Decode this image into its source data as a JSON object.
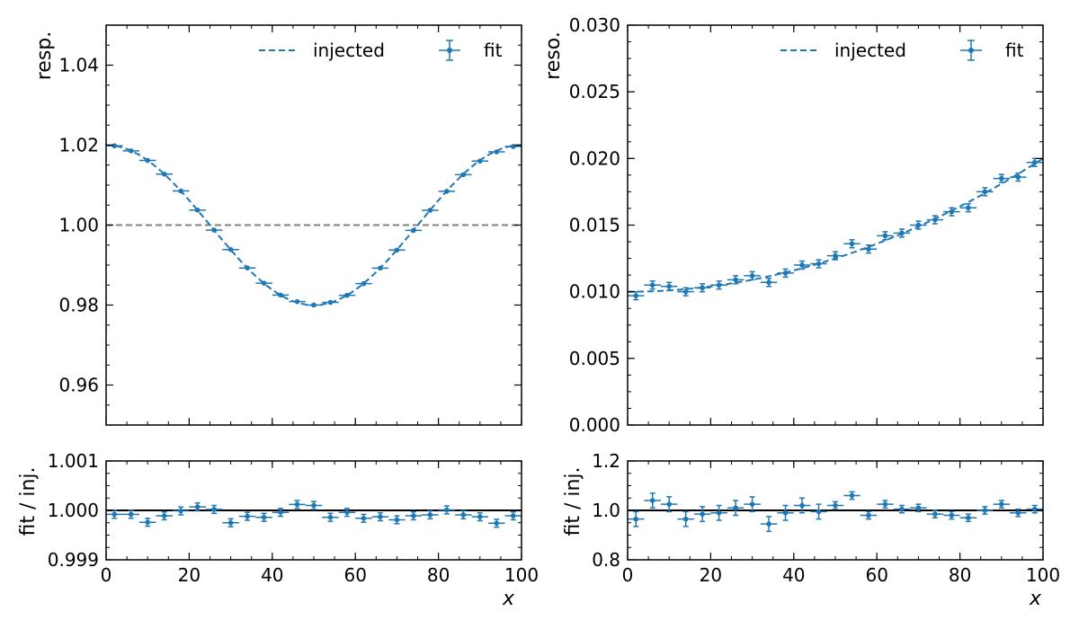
{
  "figure": {
    "x_label": "x",
    "ratio_ylabel": "fit / inj.",
    "legend": {
      "injected": "injected",
      "fit": "fit"
    },
    "colors": {
      "series": "#1f77b4",
      "reference": "#808080",
      "axis": "#000000",
      "unity": "#000000"
    }
  },
  "chart_data": [
    {
      "name": "response",
      "type": "scatter",
      "ylabel": "resp.",
      "xlim": [
        0,
        100
      ],
      "ylim": [
        0.95,
        1.05
      ],
      "x_ticks": [
        0,
        20,
        40,
        60,
        80,
        100
      ],
      "y_ticks": [
        0.96,
        0.98,
        1.0,
        1.02,
        1.04
      ],
      "y_tick_labels": [
        "0.96",
        "0.98",
        "1.00",
        "1.02",
        "1.04"
      ],
      "reference_line": 1.0,
      "legend_position": "top-right",
      "injected_curve": {
        "label": "injected",
        "style": "dashed",
        "function": "1 + 0.02*cos(2*pi*x/100)"
      },
      "fit_points": {
        "label": "fit",
        "x": [
          2,
          6,
          10,
          14,
          18,
          22,
          26,
          30,
          34,
          38,
          42,
          46,
          50,
          54,
          58,
          62,
          66,
          70,
          74,
          78,
          82,
          86,
          90,
          94,
          98
        ],
        "x_err": 2,
        "y": [
          1.01984,
          1.01857,
          1.01617,
          1.01275,
          1.00853,
          1.00375,
          0.99875,
          0.99389,
          0.98928,
          0.98548,
          0.9825,
          0.98086,
          0.98001,
          0.98067,
          0.98244,
          0.98536,
          0.98925,
          0.99376,
          0.99868,
          1.00371,
          1.00845,
          1.01261,
          1.01602,
          1.01831,
          1.01965
        ],
        "y_err": [
          0.0001,
          0.0001,
          0.0001,
          0.0001,
          0.0001,
          0.0001,
          0.0001,
          0.0001,
          0.0001,
          0.0001,
          0.0001,
          0.0001,
          0.0001,
          0.0001,
          0.0001,
          0.0001,
          0.0001,
          0.0001,
          0.0001,
          0.0001,
          0.0001,
          0.0001,
          0.0001,
          0.0001,
          0.0001
        ]
      }
    },
    {
      "name": "resolution",
      "type": "scatter",
      "ylabel": "reso.",
      "xlim": [
        0,
        100
      ],
      "ylim": [
        0.0,
        0.03
      ],
      "x_ticks": [
        0,
        20,
        40,
        60,
        80,
        100
      ],
      "y_ticks": [
        0.0,
        0.005,
        0.01,
        0.015,
        0.02,
        0.025,
        0.03
      ],
      "y_tick_labels": [
        "0.000",
        "0.005",
        "0.010",
        "0.015",
        "0.020",
        "0.025",
        "0.030"
      ],
      "legend_position": "top-right",
      "injected_curve": {
        "label": "injected",
        "style": "dashed",
        "function": "0.01 + 0.01*(x/100)^2"
      },
      "fit_points": {
        "label": "fit",
        "x": [
          2,
          6,
          10,
          14,
          18,
          22,
          26,
          30,
          34,
          38,
          42,
          46,
          50,
          54,
          58,
          62,
          66,
          70,
          74,
          78,
          82,
          86,
          90,
          94,
          98
        ],
        "x_err": 2,
        "y": [
          0.0097,
          0.0105,
          0.0104,
          0.01,
          0.0103,
          0.0105,
          0.0109,
          0.0112,
          0.0107,
          0.0114,
          0.012,
          0.0121,
          0.0127,
          0.0136,
          0.0132,
          0.0142,
          0.0144,
          0.015,
          0.0154,
          0.016,
          0.0163,
          0.0175,
          0.0185,
          0.0186,
          0.0197
        ],
        "y_err": [
          0.0003,
          0.0003,
          0.0003,
          0.0003,
          0.0003,
          0.0003,
          0.0003,
          0.0003,
          0.0003,
          0.0003,
          0.0003,
          0.0003,
          0.0003,
          0.0003,
          0.0003,
          0.0003,
          0.0003,
          0.0003,
          0.0003,
          0.0003,
          0.0003,
          0.0003,
          0.0003,
          0.0003,
          0.0003
        ]
      }
    },
    {
      "name": "response-ratio",
      "type": "scatter",
      "ylabel": "fit / inj.",
      "xlabel": "x",
      "xlim": [
        0,
        100
      ],
      "ylim": [
        0.999,
        1.001
      ],
      "x_ticks": [
        0,
        20,
        40,
        60,
        80,
        100
      ],
      "x_tick_labels": [
        "0",
        "20",
        "40",
        "60",
        "80",
        "100"
      ],
      "y_ticks": [
        0.999,
        1.0,
        1.001
      ],
      "y_tick_labels": [
        "0.999",
        "1.000",
        "1.001"
      ],
      "unity_line": 1.0,
      "points": {
        "x": [
          2,
          6,
          10,
          14,
          18,
          22,
          26,
          30,
          34,
          38,
          42,
          46,
          50,
          54,
          58,
          62,
          66,
          70,
          74,
          78,
          82,
          86,
          90,
          94,
          98
        ],
        "x_err": 2,
        "y": [
          0.99992,
          0.99992,
          0.99976,
          0.99989,
          0.99999,
          1.00007,
          1.00002,
          0.99975,
          0.99988,
          0.99986,
          0.99996,
          1.00012,
          1.0001,
          0.99986,
          0.99996,
          0.99984,
          0.99987,
          0.99981,
          0.99989,
          0.99991,
          1.00001,
          0.99991,
          0.99987,
          0.99974,
          0.99989
        ],
        "y_err": [
          8e-05,
          8e-05,
          8e-05,
          8e-05,
          8e-05,
          8e-05,
          8e-05,
          8e-05,
          8e-05,
          8e-05,
          8e-05,
          8e-05,
          8e-05,
          8e-05,
          8e-05,
          8e-05,
          8e-05,
          8e-05,
          8e-05,
          8e-05,
          8e-05,
          8e-05,
          8e-05,
          8e-05,
          8e-05
        ]
      }
    },
    {
      "name": "resolution-ratio",
      "type": "scatter",
      "ylabel": "fit / inj.",
      "xlabel": "x",
      "xlim": [
        0,
        100
      ],
      "ylim": [
        0.8,
        1.2
      ],
      "x_ticks": [
        0,
        20,
        40,
        60,
        80,
        100
      ],
      "x_tick_labels": [
        "0",
        "20",
        "40",
        "60",
        "80",
        "100"
      ],
      "y_ticks": [
        0.8,
        1.0,
        1.2
      ],
      "y_tick_labels": [
        "0.8",
        "1.0",
        "1.2"
      ],
      "unity_line": 1.0,
      "points": {
        "x": [
          2,
          6,
          10,
          14,
          18,
          22,
          26,
          30,
          34,
          38,
          42,
          46,
          50,
          54,
          58,
          62,
          66,
          70,
          74,
          78,
          82,
          86,
          90,
          94,
          98
        ],
        "x_err": 2,
        "y": [
          0.965,
          1.04,
          1.025,
          0.965,
          0.985,
          0.99,
          1.01,
          1.025,
          0.945,
          0.99,
          1.02,
          0.995,
          1.02,
          1.06,
          0.98,
          1.025,
          1.005,
          1.01,
          0.985,
          0.98,
          0.97,
          1.0,
          1.025,
          0.99,
          1.005
        ],
        "y_err": [
          0.03,
          0.03,
          0.03,
          0.03,
          0.03,
          0.03,
          0.03,
          0.03,
          0.03,
          0.03,
          0.03,
          0.03,
          0.015,
          0.015,
          0.015,
          0.015,
          0.015,
          0.015,
          0.015,
          0.015,
          0.015,
          0.015,
          0.015,
          0.015,
          0.015
        ]
      }
    }
  ]
}
